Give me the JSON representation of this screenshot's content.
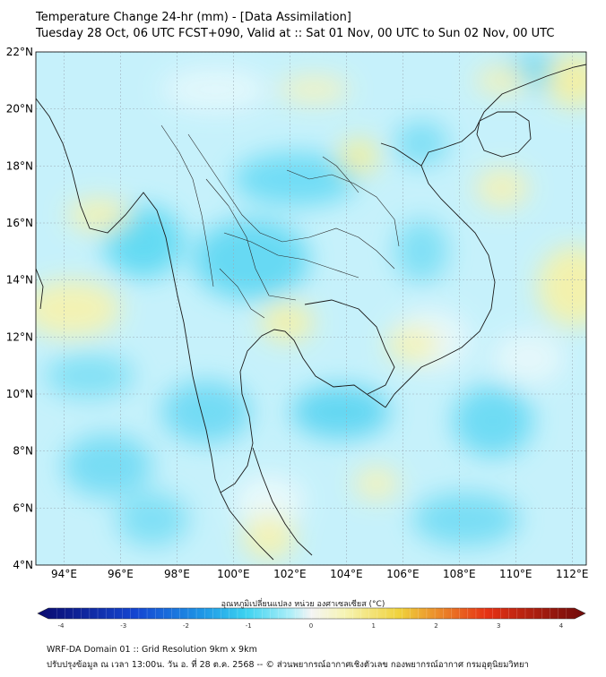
{
  "header": {
    "title": "Temperature Change 24-hr (mm) - [Data Assimilation]",
    "subtitle": "Tuesday 28 Oct, 06 UTC FCST+090, Valid at :: Sat 01 Nov, 00 UTC to Sun 02 Nov, 00 UTC"
  },
  "map": {
    "lat_labels": [
      "22°N",
      "20°N",
      "18°N",
      "16°N",
      "14°N",
      "12°N",
      "10°N",
      "8°N",
      "6°N",
      "4°N"
    ],
    "lon_labels": [
      "94°E",
      "96°E",
      "98°E",
      "100°E",
      "102°E",
      "104°E",
      "106°E",
      "108°E",
      "110°E",
      "112°E"
    ],
    "lat_values": [
      22,
      20,
      18,
      16,
      14,
      12,
      10,
      8,
      6,
      4
    ],
    "lon_values": [
      94,
      96,
      98,
      100,
      102,
      104,
      106,
      108,
      110,
      112
    ],
    "extent": {
      "lon_min": 93,
      "lon_max": 112.5,
      "lat_min": 4,
      "lat_max": 22
    }
  },
  "colorbar": {
    "label": "อุณหภูมิเปลี่ยนแปลง หน่วย องศาเซลเซียส (°C)",
    "ticks": [
      "-4",
      "-3",
      "-2",
      "-1",
      "0",
      "1",
      "2",
      "3",
      "4"
    ],
    "min": -4,
    "max": 4,
    "colors": {
      "cold_extreme": "#0a0a6e",
      "cold": "#1446d2",
      "cool": "#1e96e6",
      "light_cool": "#3cd2f0",
      "neutral_cool": "#aaeef8",
      "neutral": "#f4f4f4",
      "neutral_warm": "#f6f4b4",
      "warm": "#f0d23c",
      "hot": "#e63214",
      "hot_extreme": "#6e0a0a"
    }
  },
  "footer": {
    "line1": "WRF-DA Domain 01 :: Grid Resolution 9km x 9km",
    "line2": "ปรับปรุงข้อมูล ณ เวลา 13:00น. วัน อ. ที่ 28 ต.ค. 2568 -- © ส่วนพยากรณ์อากาศเชิงตัวเลข กองพยากรณ์อากาศ กรมอุตุนิยมวิทยา"
  }
}
